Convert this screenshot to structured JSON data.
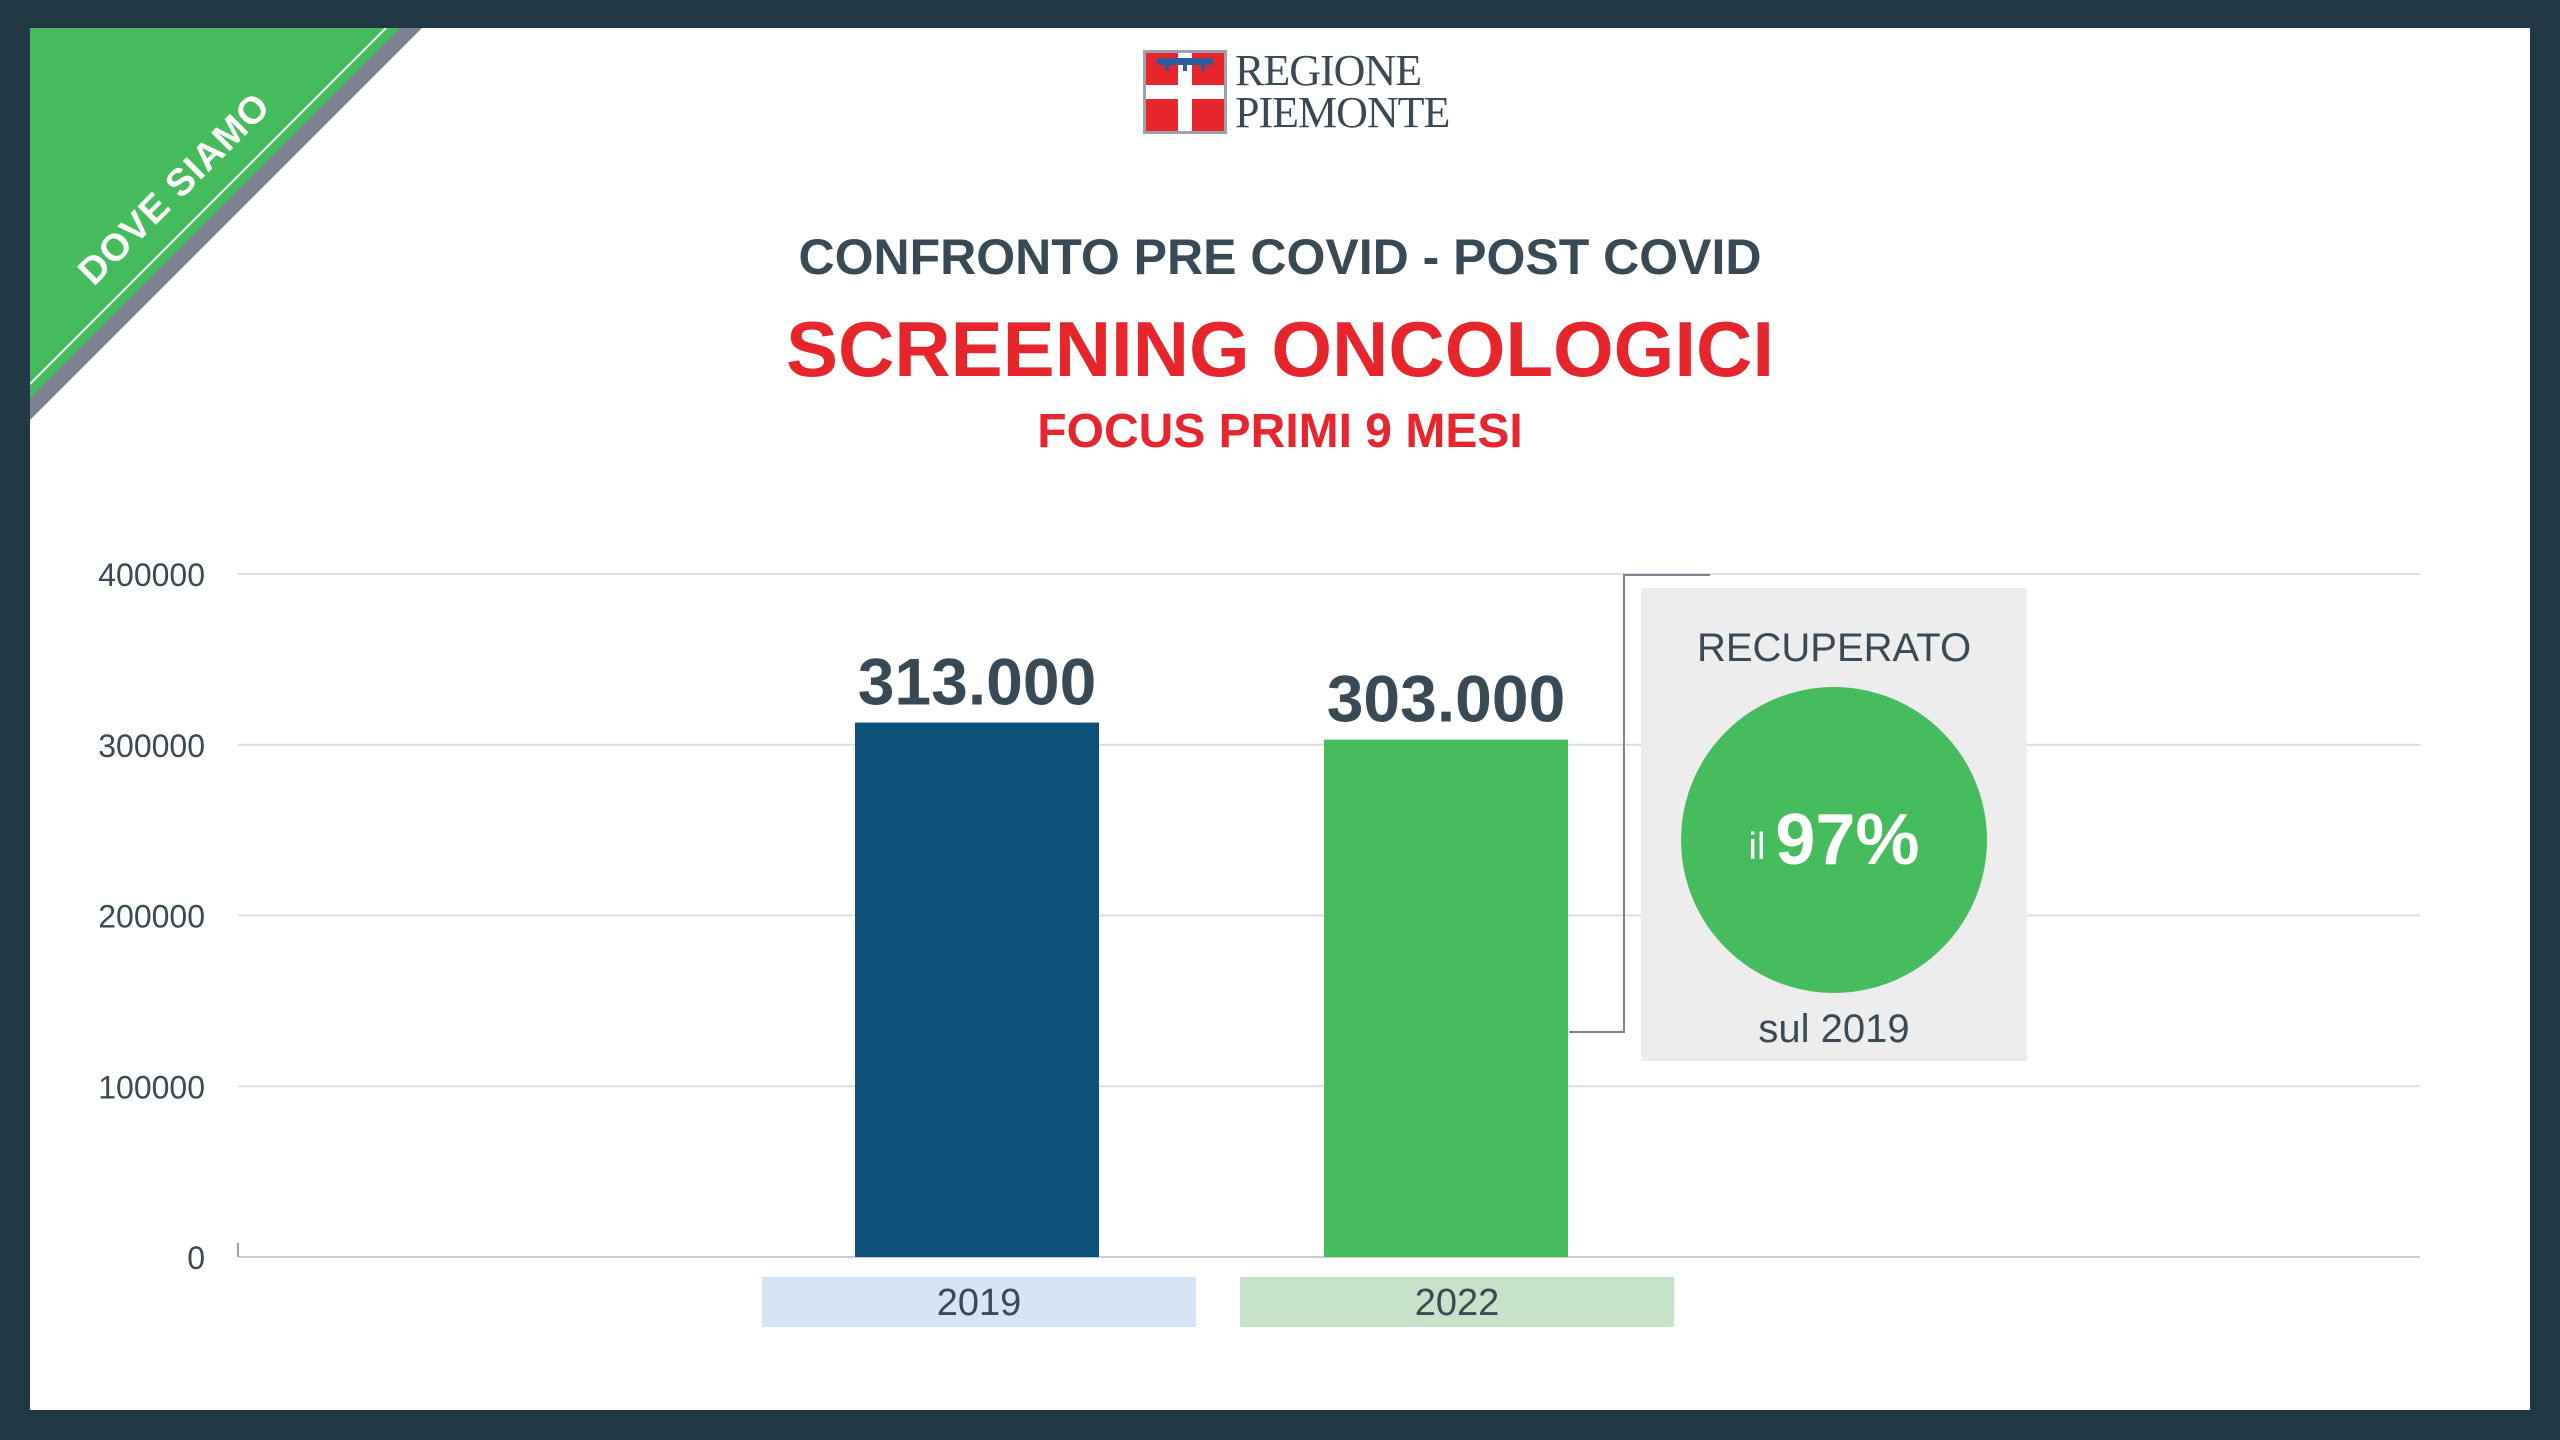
{
  "corner_banner": {
    "label": "DOVE SIAMO",
    "color": "#46bc5e"
  },
  "logo": {
    "line1": "REGIONE",
    "line2": "PIEMONTE",
    "icon": "regione-piemonte-flag-icon"
  },
  "header": {
    "title_top": "CONFRONTO PRE COVID - POST COVID",
    "title_main": "SCREENING ONCOLOGICI",
    "title_sub": "FOCUS PRIMI 9 MESI"
  },
  "chart_data": {
    "type": "bar",
    "categories": [
      "2019",
      "2022"
    ],
    "values": [
      313000,
      303000
    ],
    "data_labels": [
      "313.000",
      "303.000"
    ],
    "bar_colors": [
      "#0d5079",
      "#46bc5e"
    ],
    "category_label_bg": [
      "#d7e4f3",
      "#c6e3c9"
    ],
    "ylim": [
      0,
      400000
    ],
    "yticks": [
      0,
      100000,
      200000,
      300000,
      400000
    ],
    "ytick_labels": [
      "0",
      "100000",
      "200000",
      "300000",
      "400000"
    ],
    "grid": true
  },
  "callout": {
    "heading": "RECUPERATO",
    "prefix": "il",
    "value": "97%",
    "footer": "sul 2019"
  },
  "colors": {
    "text_dark": "#3a4a55",
    "accent_red": "#e6252c",
    "frame": "#233845"
  }
}
